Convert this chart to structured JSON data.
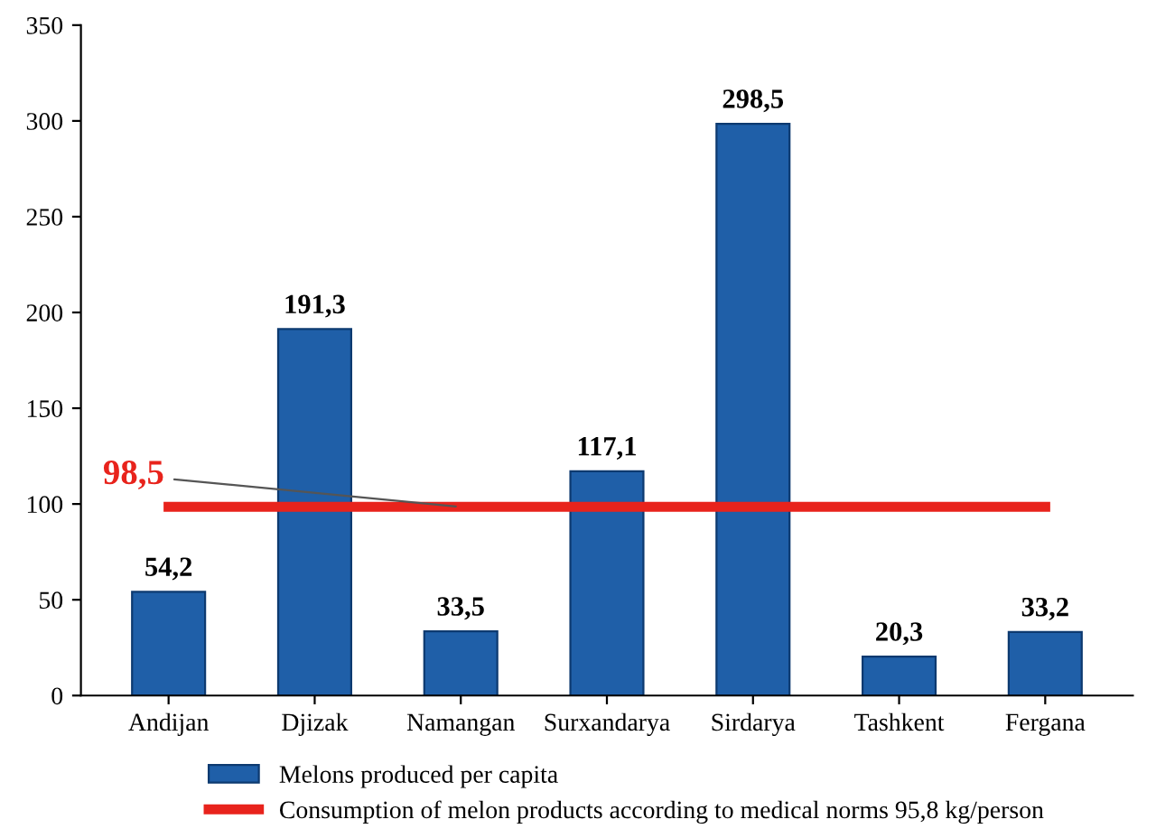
{
  "chart_data": {
    "type": "bar",
    "categories": [
      "Andijan",
      "Djizak",
      "Namangan",
      "Surxandarya",
      "Sirdarya",
      "Tashkent",
      "Fergana"
    ],
    "series": [
      {
        "name": "Melons produced per capita",
        "color": "#1f5fa8",
        "values": [
          54.2,
          191.3,
          33.5,
          117.1,
          298.5,
          20.3,
          33.2
        ],
        "value_labels": [
          "54,2",
          "191,3",
          "33,5",
          "117,1",
          "298,5",
          "20,3",
          "33,2"
        ]
      },
      {
        "name": "Consumption of melon products according to medical norms 95,8 kg/person",
        "type": "line",
        "color": "#e8231c",
        "values": [
          98.5,
          98.5,
          98.5,
          98.5,
          98.5,
          98.5,
          98.5
        ]
      }
    ],
    "annotations": [
      {
        "text": "98,5",
        "x": "Namangan",
        "y": 98.5
      }
    ],
    "ylim": [
      0,
      350
    ],
    "yticks": [
      0,
      50,
      100,
      150,
      200,
      250,
      300,
      350
    ],
    "grid": false,
    "legend": "bottom",
    "marker": "none",
    "line_style": "solid"
  }
}
